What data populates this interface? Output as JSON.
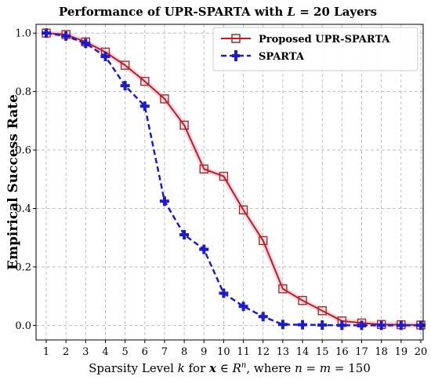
{
  "chart_data": {
    "type": "line",
    "title": "Performance of UPR-SPARTA with L = 20 Layers",
    "title_parts": {
      "prefix": "Performance of UPR-SPARTA with ",
      "var": "L",
      "suffix": " = 20 Layers"
    },
    "xlabel": "Sparsity Level k for x ∈ Rⁿ, where n = m = 150",
    "xlabel_parts": {
      "a": "Sparsity Level ",
      "k": "k",
      "b": " for ",
      "x": "x",
      "c": " ∈ ",
      "R": "R",
      "n": "n",
      "d": ", where ",
      "e": "n",
      "f": " = ",
      "g": "m",
      "h": " = 150"
    },
    "ylabel": "Empirical Success Rate",
    "x": [
      1,
      2,
      3,
      4,
      5,
      6,
      7,
      8,
      9,
      10,
      11,
      12,
      13,
      14,
      15,
      16,
      17,
      18,
      19,
      20
    ],
    "x_ticks": [
      "1",
      "2",
      "3",
      "4",
      "5",
      "6",
      "7",
      "8",
      "9",
      "10",
      "11",
      "12",
      "13",
      "14",
      "15",
      "16",
      "17",
      "18",
      "19",
      "20"
    ],
    "y_ticks": [
      "0.0",
      "0.2",
      "0.4",
      "0.6",
      "0.8",
      "1.0"
    ],
    "xlim": [
      1,
      20
    ],
    "ylim": [
      -0.05,
      1.03
    ],
    "grid": true,
    "legend_position": "top-right",
    "series": [
      {
        "name": "Proposed UPR-SPARTA",
        "color": "#b22222",
        "marker": "hollow-square",
        "linestyle": "solid",
        "values": [
          1.0,
          0.995,
          0.97,
          0.935,
          0.89,
          0.835,
          0.775,
          0.685,
          0.535,
          0.51,
          0.395,
          0.29,
          0.125,
          0.085,
          0.05,
          0.015,
          0.008,
          0.003,
          0.002,
          0.001
        ]
      },
      {
        "name": "SPARTA",
        "color": "#1c1ccf",
        "marker": "plus",
        "linestyle": "dashed",
        "values": [
          1.0,
          0.99,
          0.965,
          0.92,
          0.82,
          0.75,
          0.425,
          0.31,
          0.26,
          0.11,
          0.065,
          0.03,
          0.003,
          0.002,
          0.001,
          0.0,
          0.0,
          0.0,
          0.0,
          0.0
        ]
      }
    ]
  }
}
